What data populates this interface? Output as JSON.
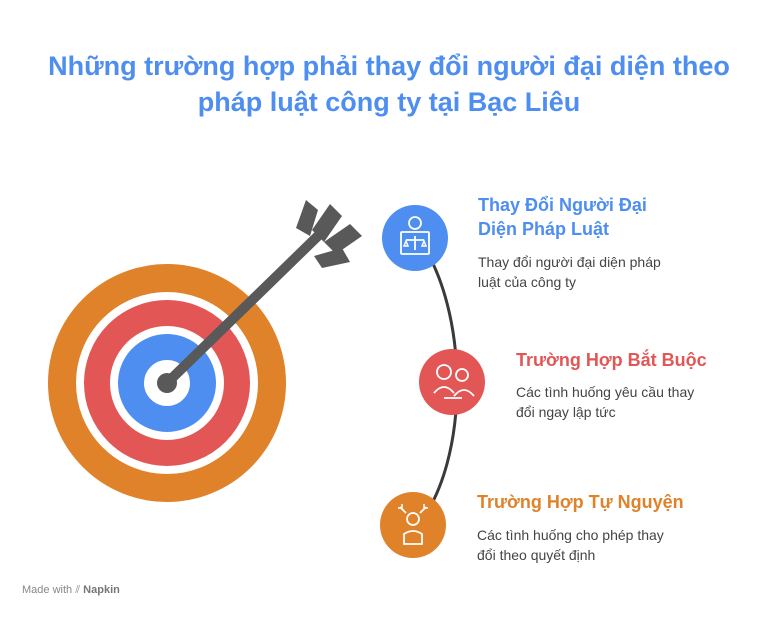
{
  "title_line1": "Những trường hợp phải thay đổi người đại diện theo",
  "title_line2": "pháp luật công ty tại Bạc Liêu",
  "items": [
    {
      "title_line1": "Thay Đổi Người Đại",
      "title_line2": "Diện Pháp Luật",
      "desc_line1": "Thay đổi người đại diện pháp",
      "desc_line2": "luật của công ty",
      "color": "#4d8ef0",
      "icon": "judge-scales-icon"
    },
    {
      "title_line1": "Trường Hợp Bắt Buộc",
      "title_line2": "",
      "desc_line1": "Các tình huống yêu cầu thay",
      "desc_line2": "đổi ngay lập tức",
      "color": "#e35656",
      "icon": "people-handshake-icon"
    },
    {
      "title_line1": "Trường Hợp Tự Nguyện",
      "title_line2": "",
      "desc_line1": "Các tình huống cho phép thay",
      "desc_line2": "đổi theo quyết định",
      "color": "#e0822a",
      "icon": "person-choice-icon"
    }
  ],
  "footer": {
    "prefix": "Made with",
    "brand": "Napkin"
  },
  "colors": {
    "outer_ring": "#e0822a",
    "middle_ring": "#e35656",
    "inner_ring": "#4d8ef0",
    "arrow": "#595959",
    "connector": "#3a3a3a"
  }
}
